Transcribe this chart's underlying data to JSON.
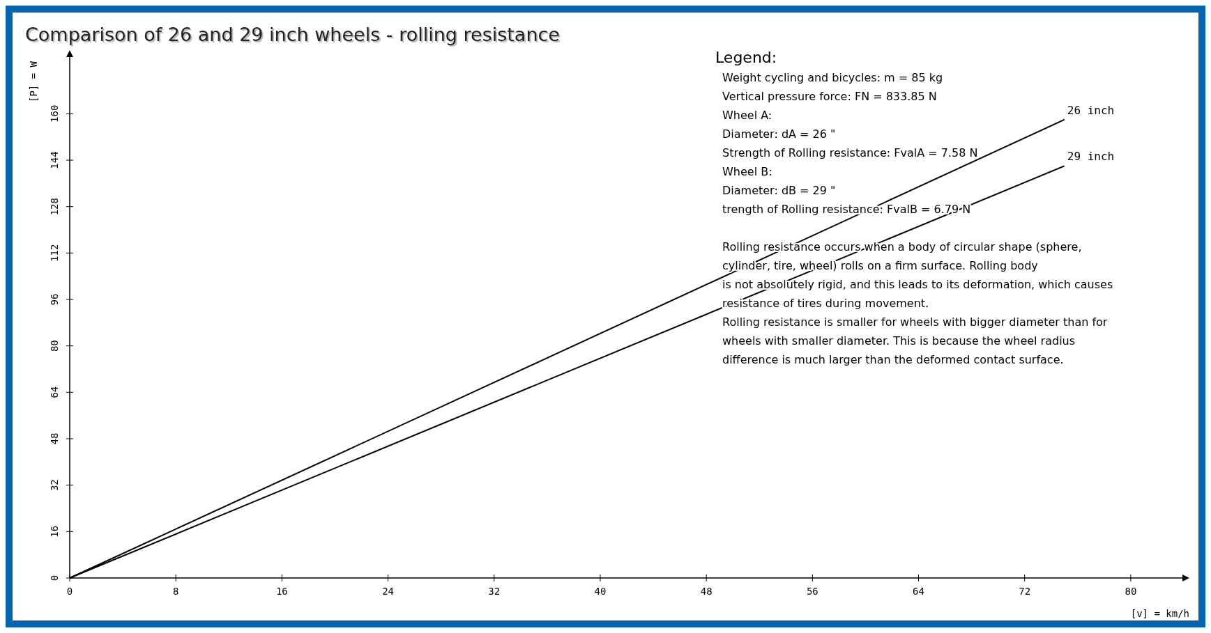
{
  "chart_data": {
    "type": "line",
    "title": "Comparison of 26 and 29 inch wheels - rolling resistance",
    "xlabel": "[v] = km/h",
    "ylabel": "[P] = W",
    "x": [
      0,
      75
    ],
    "series": [
      {
        "name": "26 inch",
        "color": "#000000",
        "values": [
          0,
          158
        ]
      },
      {
        "name": "29 inch",
        "color": "#000000",
        "values": [
          0,
          142
        ]
      }
    ],
    "xlim": [
      0,
      84
    ],
    "ylim": [
      0,
      180
    ],
    "xticks": [
      0,
      8,
      16,
      24,
      32,
      40,
      48,
      56,
      64,
      72,
      80
    ],
    "yticks": [
      0,
      16,
      32,
      48,
      64,
      80,
      96,
      112,
      128,
      144,
      160
    ],
    "grid": false,
    "line_style": "solid",
    "annotations": [
      "Legend:",
      "Weight cycling and bicycles: m = 85 kg",
      "Vertical pressure force: FN = 833.85 N",
      "Wheel A:",
      "Diameter: dA = 26 \"",
      "Strength of Rolling resistance: FvalA = 7.58 N",
      "Wheel B:",
      "Diameter: dB = 29 \"",
      "trength of Rolling resistance: FvalB = 6.79 N",
      "Rolling resistance occurs when a body of circular shape (sphere,",
      "cylinder, tire, wheel) rolls on a firm surface. Rolling body",
      "is not absolutely rigid, and this leads to its deformation, which causes",
      "resistance of tires during movement.",
      "Rolling resistance is smaller for wheels with bigger diameter than for",
      "wheels with smaller diameter. This is because the wheel radius",
      "difference is much larger than the deformed contact surface."
    ]
  }
}
